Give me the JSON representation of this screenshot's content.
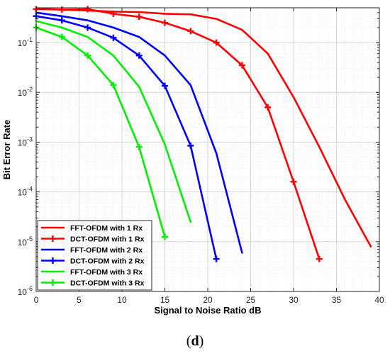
{
  "caption": {
    "open": "(",
    "letter": "d",
    "close": ")"
  },
  "chart_data": {
    "type": "line",
    "title": "",
    "xlabel": "Signal to Noise Ratio dB",
    "ylabel": "Bit Error Rate",
    "xlim": [
      0,
      40
    ],
    "ylim": [
      1e-06,
      0.5
    ],
    "yscale": "log",
    "grid": true,
    "minor_grid": true,
    "legend_position": "bottom-left",
    "x_ticks": [
      0,
      5,
      10,
      15,
      20,
      25,
      30,
      35,
      40
    ],
    "y_ticks": [
      {
        "base": "10",
        "exp": "-1"
      },
      {
        "base": "10",
        "exp": "-2"
      },
      {
        "base": "10",
        "exp": "-3"
      },
      {
        "base": "10",
        "exp": "-4"
      },
      {
        "base": "10",
        "exp": "-5"
      },
      {
        "base": "10",
        "exp": "-6"
      }
    ],
    "series": [
      {
        "name": "FFT-OFDM with 1 Rx",
        "color": "#ff0000",
        "marker": "none",
        "x": [
          0,
          3,
          6,
          9,
          12,
          15,
          18,
          21,
          24,
          27,
          30,
          33,
          36,
          39
        ],
        "y": [
          0.48,
          0.46,
          0.44,
          0.42,
          0.41,
          0.38,
          0.37,
          0.3,
          0.18,
          0.06,
          0.008,
          0.0008,
          7e-05,
          8e-06
        ]
      },
      {
        "name": "DCT-OFDM with 1 Rx",
        "color": "#ff0000",
        "marker": "plus",
        "x": [
          0,
          3,
          6,
          9,
          12,
          15,
          18,
          21,
          24,
          27,
          30,
          33
        ],
        "y": [
          0.47,
          0.46,
          0.47,
          0.38,
          0.33,
          0.25,
          0.17,
          0.1,
          0.035,
          0.005,
          0.00016,
          4.5e-06
        ]
      },
      {
        "name": "FFT-OFDM with 2 Rx",
        "color": "#0000ff",
        "marker": "none",
        "x": [
          0,
          3,
          6,
          9,
          12,
          15,
          18,
          21,
          24
        ],
        "y": [
          0.4,
          0.34,
          0.28,
          0.2,
          0.13,
          0.055,
          0.014,
          0.0006,
          6e-06
        ]
      },
      {
        "name": "DCT-OFDM with 2 Rx",
        "color": "#0000ff",
        "marker": "plus",
        "x": [
          0,
          3,
          6,
          9,
          12,
          15,
          18,
          21
        ],
        "y": [
          0.34,
          0.28,
          0.2,
          0.125,
          0.055,
          0.0135,
          0.00085,
          4.5e-06
        ]
      },
      {
        "name": "FFT-OFDM with 3 Rx",
        "color": "#00ee00",
        "marker": "none",
        "x": [
          0,
          3,
          6,
          9,
          12,
          15,
          18
        ],
        "y": [
          0.27,
          0.2,
          0.13,
          0.055,
          0.013,
          0.0009,
          2.5e-05
        ]
      },
      {
        "name": "DCT-OFDM with 3 Rx",
        "color": "#00ee00",
        "marker": "plus",
        "x": [
          0,
          3,
          6,
          9,
          12,
          15
        ],
        "y": [
          0.2,
          0.13,
          0.055,
          0.014,
          0.0008,
          1.25e-05
        ]
      }
    ]
  }
}
